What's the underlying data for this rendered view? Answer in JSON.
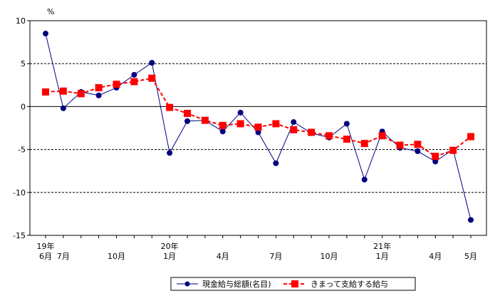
{
  "chart_data": {
    "type": "line",
    "unit_label": "%",
    "ylim": [
      -15,
      10
    ],
    "yticks": [
      10,
      5,
      0,
      -5,
      -10,
      -15
    ],
    "grid": "dashed horizontal at 5, -5, -10; solid at 0",
    "x_count": 25,
    "x_ticks": [
      {
        "index": 0,
        "year": "19年",
        "month": "6月"
      },
      {
        "index": 1,
        "year": "",
        "month": "7月"
      },
      {
        "index": 4,
        "year": "",
        "month": "10月"
      },
      {
        "index": 7,
        "year": "20年",
        "month": "1月"
      },
      {
        "index": 10,
        "year": "",
        "month": "4月"
      },
      {
        "index": 13,
        "year": "",
        "month": "7月"
      },
      {
        "index": 16,
        "year": "",
        "month": "10月"
      },
      {
        "index": 19,
        "year": "21年",
        "month": "1月"
      },
      {
        "index": 22,
        "year": "",
        "month": "4月"
      },
      {
        "index": 24,
        "year": "",
        "month": "5月"
      }
    ],
    "series": [
      {
        "name": "現金給与総額(名目)",
        "color": "#000080",
        "marker": "circle",
        "values": [
          8.5,
          -0.2,
          1.7,
          1.3,
          2.2,
          3.7,
          5.1,
          -5.4,
          -1.7,
          -1.6,
          -2.9,
          -0.7,
          -3.0,
          -6.6,
          -1.8,
          -3.1,
          -3.6,
          -2.0,
          -8.5,
          -2.9,
          -4.8,
          -5.2,
          -6.4,
          -5.0,
          -13.2
        ]
      },
      {
        "name": "きまって支給する給与",
        "color": "#ff0000",
        "marker": "square",
        "values": [
          1.7,
          1.8,
          1.5,
          2.2,
          2.6,
          2.9,
          3.3,
          -0.1,
          -0.8,
          -1.6,
          -2.2,
          -2.0,
          -2.4,
          -2.0,
          -2.7,
          -3.0,
          -3.4,
          -3.8,
          -4.3,
          -3.4,
          -4.5,
          -4.4,
          -5.8,
          -5.1,
          -3.5
        ]
      }
    ]
  }
}
